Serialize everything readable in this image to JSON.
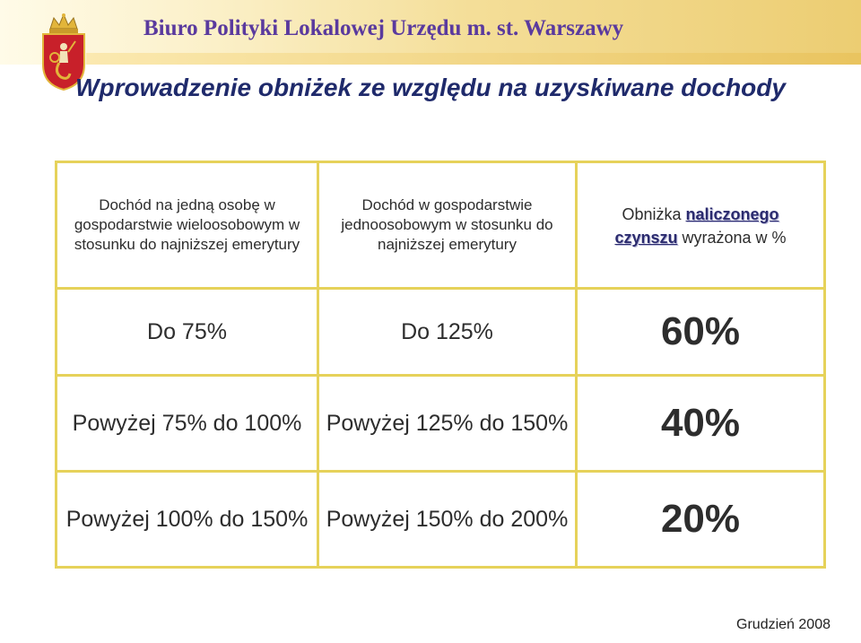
{
  "header": {
    "org_title": "Biuro Polityki Lokalowej Urzędu m. st. Warszawy",
    "logo_icon": "warsaw-coat-of-arms-icon"
  },
  "slide": {
    "title": "Wprowadzenie obniżek ze względu na uzyskiwane dochody"
  },
  "table": {
    "columns": [
      "Dochód na jedną osobę w gospodarstwie wieloosobowym w stosunku do najniższej emerytury",
      "Dochód w gospodarstwie jednoosobowym w stosunku do najniższej emerytury",
      {
        "prefix": "Obniżka ",
        "emph1": "naliczonego",
        "emph2": "czynszu",
        "suffix": " wyrażona w %"
      }
    ],
    "rows": [
      [
        "Do 75%",
        "Do 125%",
        "60%"
      ],
      [
        "Powyżej 75% do 100%",
        "Powyżej 125% do 150%",
        "40%"
      ],
      [
        "Powyżej 100% do 150%",
        "Powyżej 150% do 200%",
        "20%"
      ]
    ]
  },
  "footer": {
    "date": "Grudzień 2008"
  },
  "colors": {
    "title": "#1f2a6b",
    "org_title": "#5a3a9e",
    "table_border": "#e6d25a",
    "banner": "#eccd72",
    "logo_red": "#c8202a",
    "logo_gold": "#e2b53a"
  }
}
